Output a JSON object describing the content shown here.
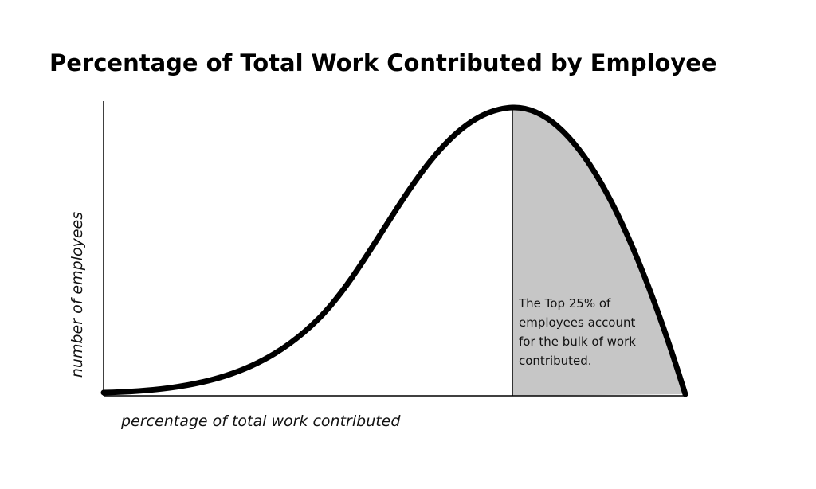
{
  "header": {
    "title": "Percentage of Total Work Contributed by Employee"
  },
  "axes": {
    "y_label": "number of employees",
    "x_label": "percentage of total work contributed"
  },
  "annotation": {
    "lines": [
      "The Top 25% of",
      "employees account",
      "for the bulk of work",
      "contributed."
    ]
  }
}
